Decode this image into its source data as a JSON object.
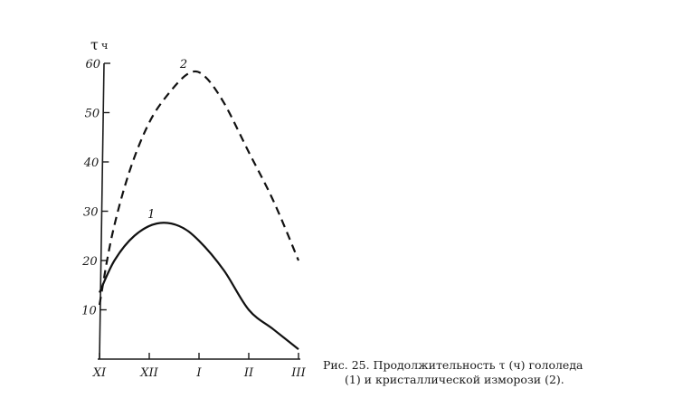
{
  "chart_data": {
    "type": "line",
    "ylabel": "τ",
    "ylabel_unit": "ч",
    "ylim": [
      0,
      60
    ],
    "yticks": [
      10,
      20,
      30,
      40,
      50,
      60
    ],
    "ytick_labels": [
      "10",
      "20",
      "30",
      "40",
      "50",
      "60"
    ],
    "categories": [
      "XI",
      "XII",
      "I",
      "II",
      "III"
    ],
    "x_range": [
      0,
      4
    ],
    "series": [
      {
        "name": "1",
        "style": "solid",
        "x": [
          0,
          0.3,
          0.7,
          1.15,
          1.6,
          2.0,
          2.5,
          3.0,
          3.5,
          4.0
        ],
        "y": [
          13.5,
          20,
          25,
          27.5,
          27,
          24,
          18,
          10,
          6,
          2
        ]
      },
      {
        "name": "2",
        "style": "dashed",
        "x": [
          0,
          0.25,
          0.6,
          1.0,
          1.4,
          1.8,
          2.1,
          2.5,
          3.0,
          3.5,
          4.0
        ],
        "y": [
          11,
          25,
          38,
          48,
          54,
          58,
          57.5,
          52,
          42,
          32,
          20
        ]
      }
    ],
    "caption": {
      "line1": "Рис. 25.   Продолжительность τ (ч) гололеда",
      "line2": "(1) и кристаллической изморози (2)."
    }
  }
}
